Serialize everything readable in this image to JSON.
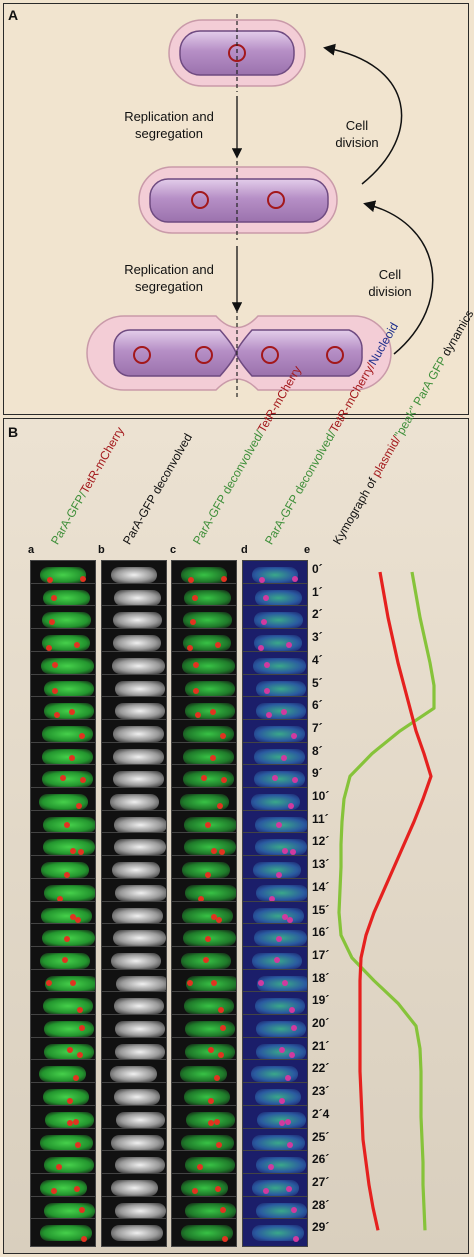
{
  "panel_a": {
    "label": "A",
    "arrow1_label": [
      "Replication and",
      "segregation"
    ],
    "arrow2_label": [
      "Replication and",
      "segregation"
    ],
    "arrow3_label": [
      "Cell",
      "division"
    ],
    "arrow4_label": [
      "Cell",
      "division"
    ]
  },
  "panel_b": {
    "label": "B",
    "columns": [
      {
        "letter": "a",
        "title_parts": [
          {
            "text": "ParA-GFP/",
            "color": "#3f8f3a"
          },
          {
            "text": "TetR-mCherry",
            "color": "#a3181b"
          }
        ]
      },
      {
        "letter": "b",
        "title_parts": [
          {
            "text": "ParA-GFP deconvolved",
            "color": "#111111"
          }
        ]
      },
      {
        "letter": "c",
        "title_parts": [
          {
            "text": "ParA-GFP deconvolved/",
            "color": "#3f8f3a"
          },
          {
            "text": "TetR-mCherry",
            "color": "#a3181b"
          }
        ]
      },
      {
        "letter": "d",
        "title_parts": [
          {
            "text": "ParA-GFP deconvolved/",
            "color": "#3f8f3a"
          },
          {
            "text": "TetR-mCherry/",
            "color": "#a3181b"
          },
          {
            "text": "Nucleoid",
            "color": "#1d2e8c"
          }
        ]
      },
      {
        "letter": "e",
        "title_parts": [
          {
            "text": "Kymograph of ",
            "color": "#111111"
          },
          {
            "text": "plasmid/",
            "color": "#a3181b"
          },
          {
            "text": "\"peak\" ParA GFP",
            "color": "#3f8f3a"
          },
          {
            "text": " dynamics",
            "color": "#111111"
          }
        ]
      }
    ],
    "time_labels": [
      "0´",
      "1´",
      "2´",
      "3´",
      "4´",
      "5´",
      "6´",
      "7´",
      "8´",
      "9´",
      "10´",
      "11´",
      "12´",
      "13´",
      "14´",
      "15´",
      "16´",
      "17´",
      "18´",
      "19´",
      "20´",
      "21´",
      "22´",
      "23´",
      "2´4",
      "25´",
      "26´",
      "27´",
      "28´",
      "29´"
    ]
  },
  "kymograph": {
    "plasmid_color": "#e5211f",
    "para_color": "#86c33a",
    "plasmid_x": [
      380,
      384,
      388,
      393,
      398,
      404,
      410,
      416,
      424,
      431,
      423,
      414,
      404,
      394,
      384,
      374,
      366,
      361,
      360,
      360,
      360,
      360,
      360,
      361,
      362,
      363,
      366,
      369,
      373,
      378
    ],
    "para_x": [
      412,
      416,
      420,
      425,
      430,
      434,
      434,
      400,
      372,
      350,
      344,
      342,
      341,
      341,
      340,
      339,
      341,
      352,
      374,
      398,
      416,
      420,
      421,
      421,
      421,
      422,
      423,
      423,
      424,
      425
    ]
  },
  "colors": {
    "cell_fill": "#c6a6d2",
    "envelope": "#f0c9d3",
    "plasmid_ring": "#a3181b",
    "background": "#f1e4cf"
  }
}
